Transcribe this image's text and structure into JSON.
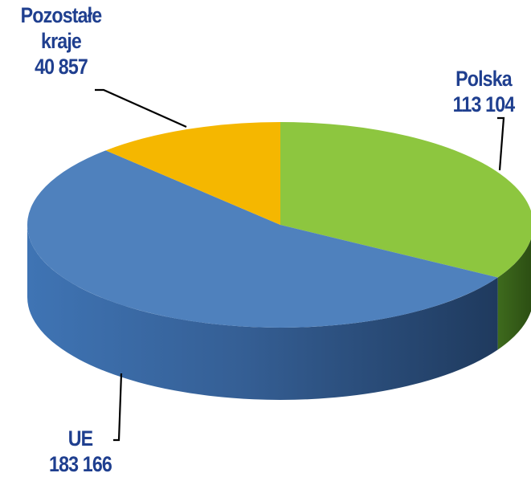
{
  "chart_data": {
    "type": "pie",
    "style": "3d",
    "slices": [
      {
        "label": "Polska",
        "value": 113104,
        "value_text": "113 104",
        "color": "#8dc63f"
      },
      {
        "label": "UE",
        "value": 183166,
        "value_text": "183 166",
        "color": "#4f81bd"
      },
      {
        "label": "Pozostałe kraje",
        "label_lines": [
          "Pozostałe",
          "kraje"
        ],
        "value": 40857,
        "value_text": "40 857",
        "color": "#f5b700"
      }
    ]
  }
}
